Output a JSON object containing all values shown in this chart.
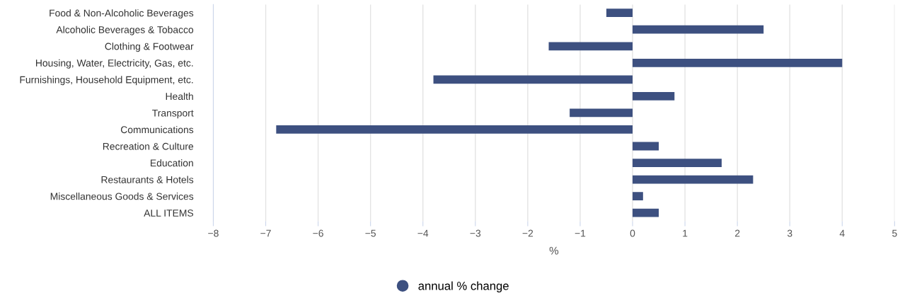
{
  "chart_data": {
    "type": "bar",
    "orientation": "horizontal",
    "categories": [
      "Food & Non-Alcoholic Beverages",
      "Alcoholic Beverages & Tobacco",
      "Clothing & Footwear",
      "Housing, Water, Electricity, Gas, etc.",
      "Furnishings, Household Equipment, etc.",
      "Health",
      "Transport",
      "Communications",
      "Recreation & Culture",
      "Education",
      "Restaurants & Hotels",
      "Miscellaneous Goods & Services",
      "ALL ITEMS"
    ],
    "series": [
      {
        "name": "annual % change",
        "color": "#3d5080",
        "values": [
          -0.5,
          2.5,
          -1.6,
          4.0,
          -3.8,
          0.8,
          -1.2,
          -6.8,
          0.5,
          1.7,
          2.3,
          0.2,
          0.5
        ]
      }
    ],
    "xlabel": "%",
    "xlim": [
      -8,
      5
    ],
    "xticks": [
      {
        "value": -8,
        "label": "−8"
      },
      {
        "value": -7,
        "label": "−7"
      },
      {
        "value": -6,
        "label": "−6"
      },
      {
        "value": -5,
        "label": "−5"
      },
      {
        "value": -4,
        "label": "−4"
      },
      {
        "value": -3,
        "label": "−3"
      },
      {
        "value": -2,
        "label": "−2"
      },
      {
        "value": -1,
        "label": "−1"
      },
      0,
      1,
      2,
      3,
      4,
      5
    ],
    "grid": "x",
    "legend": "bottom"
  }
}
